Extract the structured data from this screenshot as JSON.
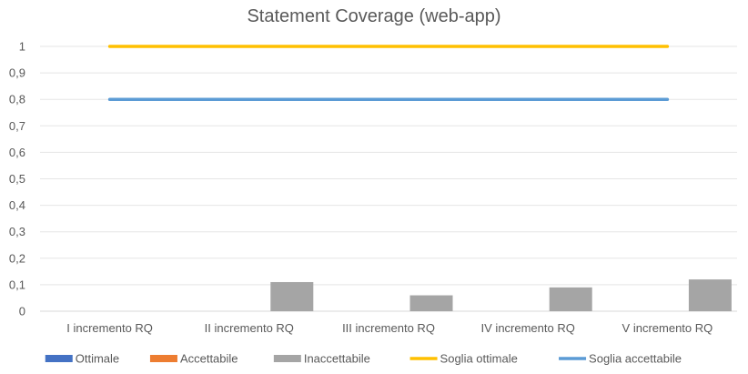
{
  "chart_data": {
    "type": "bar",
    "title": "Statement Coverage (web-app)",
    "xlabel": "",
    "ylabel": "",
    "categories": [
      "I incremento RQ",
      "II incremento RQ",
      "III incremento RQ",
      "IV incremento RQ",
      "V incremento RQ"
    ],
    "ylim": [
      0,
      1
    ],
    "yticks": [
      "0",
      "0,1",
      "0,2",
      "0,3",
      "0,4",
      "0,5",
      "0,6",
      "0,7",
      "0,8",
      "0,9",
      "1"
    ],
    "grid": true,
    "legend_position": "bottom",
    "series": [
      {
        "name": "Ottimale",
        "kind": "bar",
        "color": "#4472C4",
        "values": [
          0,
          0,
          0,
          0,
          0
        ]
      },
      {
        "name": "Accettabile",
        "kind": "bar",
        "color": "#ED7D31",
        "values": [
          0,
          0,
          0,
          0,
          0
        ]
      },
      {
        "name": "Inaccettabile",
        "kind": "bar",
        "color": "#A5A5A5",
        "values": [
          0,
          0.11,
          0.06,
          0.09,
          0.12
        ]
      },
      {
        "name": "Soglia ottimale",
        "kind": "line",
        "color": "#FFC000",
        "values": [
          1,
          1,
          1,
          1,
          1
        ]
      },
      {
        "name": "Soglia accettabile",
        "kind": "line",
        "color": "#5B9BD5",
        "values": [
          0.8,
          0.8,
          0.8,
          0.8,
          0.8
        ]
      }
    ]
  }
}
